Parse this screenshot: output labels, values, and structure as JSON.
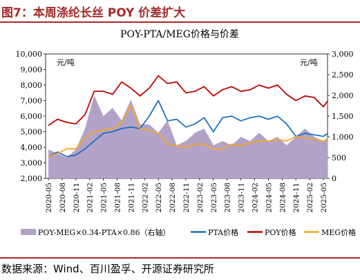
{
  "figure": {
    "label": "图7：本周涤纶长丝 POY 价差扩大",
    "source": "数据来源：Wind、百川盈孚、开源证券研究所"
  },
  "colors": {
    "title": "#a52a2a",
    "spread_fill": "#b3a2c7",
    "pta": "#1f6fbf",
    "poy": "#c00000",
    "meg": "#f5a623"
  },
  "chart_data": {
    "type": "line",
    "title": "POY-PTA/MEG价格与价差",
    "left_axis": {
      "unit": "元/吨",
      "range": [
        2000,
        10000
      ],
      "ticks": [
        "2,000",
        "3,000",
        "4,000",
        "5,000",
        "6,000",
        "7,000",
        "8,000",
        "9,000",
        "10,000"
      ]
    },
    "right_axis": {
      "unit": "元/吨",
      "range": [
        0,
        3000
      ],
      "ticks": [
        "0",
        "500",
        "1,000",
        "1,500",
        "2,000",
        "2,500",
        "3,000"
      ]
    },
    "x_ticks": [
      "2020-05",
      "2020-08",
      "2020-11",
      "2021-02",
      "2021-05",
      "2021-08",
      "2021-11",
      "2022-02",
      "2022-05",
      "2022-08",
      "2022-11",
      "2023-02",
      "2023-05",
      "2023-08",
      "2023-11",
      "2024-02",
      "2024-05",
      "2024-08",
      "2024-11",
      "2025-02",
      "2025-05"
    ],
    "x": [
      "2020-05",
      "2020-07",
      "2020-09",
      "2020-11",
      "2021-01",
      "2021-03",
      "2021-05",
      "2021-07",
      "2021-09",
      "2021-11",
      "2022-01",
      "2022-03",
      "2022-05",
      "2022-07",
      "2022-09",
      "2022-11",
      "2023-01",
      "2023-03",
      "2023-05",
      "2023-07",
      "2023-09",
      "2023-11",
      "2024-01",
      "2024-03",
      "2024-05",
      "2024-07",
      "2024-09",
      "2024-11",
      "2025-01",
      "2025-03",
      "2025-05",
      "2025-06"
    ],
    "series": [
      {
        "name": "POY-MEG×0.34-PTA×0.86（右轴）",
        "type": "area",
        "axis": "right",
        "values": [
          700,
          600,
          500,
          700,
          1200,
          2000,
          1500,
          1700,
          1400,
          1900,
          1300,
          1300,
          1100,
          1400,
          800,
          900,
          1100,
          1200,
          800,
          900,
          800,
          1000,
          900,
          1100,
          900,
          1000,
          800,
          1000,
          1200,
          1000,
          900,
          1000
        ]
      },
      {
        "name": "PTA价格",
        "type": "line",
        "axis": "left",
        "values": [
          3400,
          3700,
          3400,
          3500,
          3900,
          4400,
          4900,
          5000,
          5200,
          5300,
          5200,
          6000,
          7000,
          5700,
          5800,
          5300,
          5500,
          5900,
          5000,
          5900,
          6000,
          5700,
          5900,
          6000,
          5800,
          6000,
          5500,
          4700,
          4900,
          4800,
          4700,
          4900
        ]
      },
      {
        "name": "POY价格",
        "type": "line",
        "axis": "left",
        "values": [
          5400,
          5800,
          5600,
          5500,
          6100,
          7600,
          7600,
          7400,
          8200,
          7800,
          7300,
          7800,
          8600,
          8100,
          8200,
          7500,
          7600,
          7900,
          7300,
          7700,
          7900,
          7600,
          7700,
          8000,
          7800,
          8000,
          7400,
          7000,
          7300,
          7200,
          6600,
          7000
        ]
      },
      {
        "name": "MEG价格",
        "type": "line",
        "axis": "left",
        "values": [
          3400,
          3600,
          3900,
          3900,
          4600,
          5000,
          5100,
          5200,
          5600,
          6700,
          5200,
          5100,
          4900,
          4200,
          4100,
          4000,
          4200,
          4200,
          3900,
          3900,
          4200,
          4100,
          4300,
          4400,
          4400,
          4500,
          4400,
          4700,
          4600,
          4500,
          4400,
          4500
        ]
      }
    ],
    "legend": {
      "placement": "bottom"
    }
  }
}
